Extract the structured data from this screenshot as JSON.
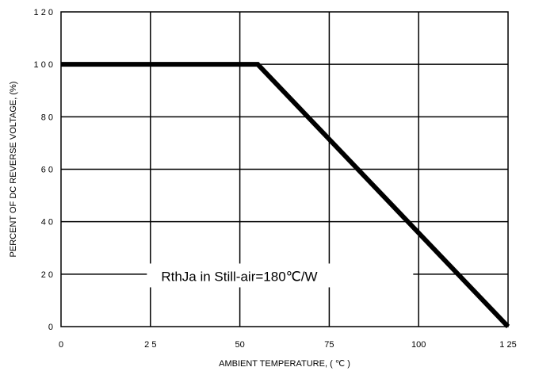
{
  "chart_data": {
    "type": "line",
    "title": "",
    "xlabel": "AMBIENT TEMPERATURE, ( ℃ )",
    "ylabel": "PERCENT OF DC REVERSE VOLTAGE, (%)",
    "xlim": [
      0,
      125
    ],
    "ylim": [
      0,
      120
    ],
    "x_ticks": [
      0,
      25,
      50,
      75,
      100,
      125
    ],
    "x_tick_labels": [
      "0",
      "2 5",
      "50",
      "75",
      "100",
      "1 25"
    ],
    "y_ticks": [
      0,
      20,
      40,
      60,
      80,
      100,
      120
    ],
    "y_tick_labels": [
      "0",
      "2 0",
      "4 0",
      "6 0",
      "8 0",
      "1 0 0",
      "1 2 0"
    ],
    "grid": true,
    "series": [
      {
        "x": [
          0,
          55,
          125
        ],
        "y": [
          100,
          100,
          0
        ]
      }
    ],
    "annotations": [
      {
        "text": "RthJa in Still-air=180℃/W",
        "x": 28,
        "y": 18
      }
    ]
  }
}
